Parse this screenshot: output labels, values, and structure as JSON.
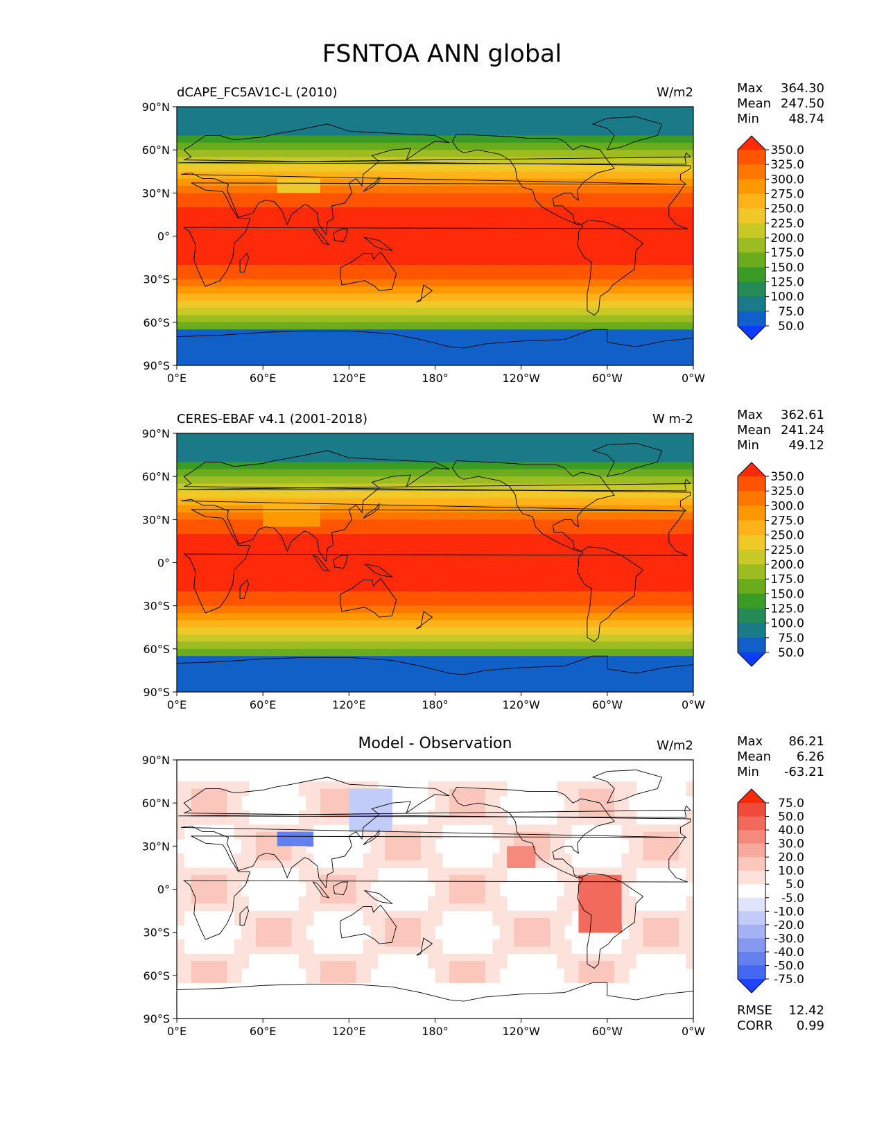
{
  "page": {
    "title": "FSNTOA ANN global"
  },
  "axes": {
    "lat_ticks": [
      "90°N",
      "60°N",
      "30°N",
      "0°",
      "30°S",
      "60°S",
      "90°S"
    ],
    "lon_ticks": [
      "0°E",
      "60°E",
      "120°E",
      "180°",
      "120°W",
      "60°W",
      "0°W"
    ]
  },
  "panels": [
    {
      "subtitle_left": "dCAPE_FC5AV1C-L (2010)",
      "subtitle_center": "",
      "units": "W/m2",
      "stats": [
        {
          "label": "Max",
          "value": "364.30"
        },
        {
          "label": "Mean",
          "value": "247.50"
        },
        {
          "label": "Min",
          "value": "48.74"
        }
      ],
      "colorbar": {
        "labels": [
          "350.0",
          "325.0",
          "300.0",
          "275.0",
          "250.0",
          "225.0",
          "200.0",
          "175.0",
          "150.0",
          "125.0",
          "100.0",
          "75.0",
          "50.0"
        ],
        "colors": [
          "#ff2a0a",
          "#ff5500",
          "#ff7700",
          "#ff9800",
          "#ffb21a",
          "#f0c828",
          "#c8c826",
          "#9cbc22",
          "#6aac1c",
          "#3a9c24",
          "#248a56",
          "#1a7a88",
          "#1060c8",
          "#0a3cff"
        ]
      },
      "map": "model"
    },
    {
      "subtitle_left": "CERES-EBAF v4.1 (2001-2018)",
      "subtitle_center": "",
      "units": "W m-2",
      "stats": [
        {
          "label": "Max",
          "value": "362.61"
        },
        {
          "label": "Mean",
          "value": "241.24"
        },
        {
          "label": "Min",
          "value": "49.12"
        }
      ],
      "colorbar": {
        "labels": [
          "350.0",
          "325.0",
          "300.0",
          "275.0",
          "250.0",
          "225.0",
          "200.0",
          "175.0",
          "150.0",
          "125.0",
          "100.0",
          "75.0",
          "50.0"
        ],
        "colors": [
          "#ff2a0a",
          "#ff5500",
          "#ff7700",
          "#ff9800",
          "#ffb21a",
          "#f0c828",
          "#c8c826",
          "#9cbc22",
          "#6aac1c",
          "#3a9c24",
          "#248a56",
          "#1a7a88",
          "#1060c8",
          "#0a3cff"
        ]
      },
      "map": "obs"
    },
    {
      "subtitle_left": "",
      "subtitle_center": "Model - Observation",
      "units": "W/m2",
      "stats": [
        {
          "label": "Max",
          "value": "86.21"
        },
        {
          "label": "Mean",
          "value": "6.26"
        },
        {
          "label": "Min",
          "value": "-63.21"
        }
      ],
      "extra_stats": [
        {
          "label": "RMSE",
          "value": "12.42"
        },
        {
          "label": "CORR",
          "value": "0.99"
        }
      ],
      "colorbar": {
        "labels": [
          "75.0",
          "50.0",
          "40.0",
          "30.0",
          "20.0",
          "10.0",
          "5.0",
          "-5.0",
          "-10.0",
          "-20.0",
          "-30.0",
          "-40.0",
          "-50.0",
          "-75.0"
        ],
        "colors": [
          "#ff2a0a",
          "#f04a3a",
          "#f26a5c",
          "#f58a7c",
          "#f8a89c",
          "#fbc6bc",
          "#fde2dc",
          "#ffffff",
          "#dfe4fb",
          "#c2ccf8",
          "#a4b2f4",
          "#8498f0",
          "#6480ee",
          "#4468f2",
          "#1e44ff"
        ]
      },
      "map": "diff"
    }
  ]
}
